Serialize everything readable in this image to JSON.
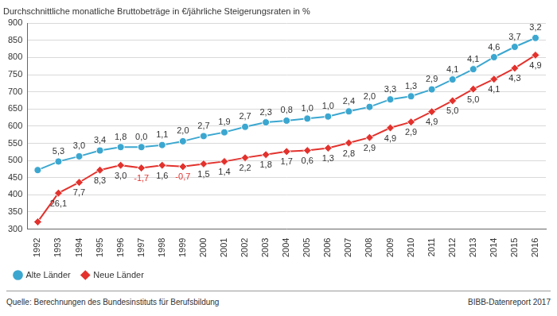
{
  "chart_data": {
    "type": "line",
    "title": "Durchschnittliche monatliche Bruttobeträge in €/jährliche Steigerungsraten in %",
    "source": "Quelle: Berechnungen des Bundesinstituts für Berufsbildung",
    "credit": "BIBB-Datenreport 2017",
    "categories": [
      "1992",
      "1993",
      "1994",
      "1995",
      "1996",
      "1997",
      "1998",
      "1999",
      "2000",
      "2001",
      "2002",
      "2003",
      "2004",
      "2005",
      "2006",
      "2007",
      "2008",
      "2009",
      "2010",
      "2011",
      "2012",
      "2013",
      "2014",
      "2015",
      "2016"
    ],
    "series": [
      {
        "name": "Alte Länder",
        "color": "#3ba7d0",
        "marker": "circle",
        "values": [
          472,
          497,
          512,
          529,
          539,
          539,
          545,
          556,
          571,
          582,
          598,
          611,
          616,
          622,
          628,
          643,
          656,
          678,
          687,
          707,
          736,
          766,
          801,
          831,
          857
        ],
        "rates": [
          null,
          5.3,
          3.0,
          3.4,
          1.8,
          0.0,
          1.1,
          2.0,
          2.7,
          1.9,
          2.7,
          2.3,
          0.8,
          1.0,
          1.0,
          2.4,
          2.0,
          3.3,
          1.3,
          2.9,
          4.1,
          4.1,
          4.6,
          3.7,
          3.2
        ],
        "rate_labels": [
          null,
          "5,3",
          "3,0",
          "3,4",
          "1,8",
          "0,0",
          "1,1",
          "2,0",
          "2,7",
          "1,9",
          "2,7",
          "2,3",
          "0,8",
          "1,0",
          "1,0",
          "2,4",
          "2,0",
          "3,3",
          "1,3",
          "2,9",
          "4,1",
          "4,1",
          "4,6",
          "3,7",
          "3,2"
        ]
      },
      {
        "name": "Neue Länder",
        "color": "#e3322d",
        "marker": "diamond",
        "values": [
          321,
          405,
          436,
          472,
          486,
          478,
          486,
          482,
          490,
          497,
          508,
          517,
          526,
          529,
          536,
          551,
          567,
          595,
          612,
          642,
          674,
          708,
          737,
          769,
          807
        ],
        "rates": [
          null,
          26.1,
          7.7,
          8.3,
          3.0,
          -1.7,
          1.6,
          -0.7,
          1.5,
          1.4,
          2.2,
          1.8,
          1.7,
          0.6,
          1.3,
          2.8,
          2.9,
          4.9,
          2.9,
          4.9,
          5.0,
          5.0,
          4.1,
          4.3,
          4.9
        ],
        "rate_labels": [
          null,
          "26,1",
          "7,7",
          "8,3",
          "3,0",
          "-1,7",
          "1,6",
          "-0,7",
          "1,5",
          "1,4",
          "2,2",
          "1,8",
          "1,7",
          "0,6",
          "1,3",
          "2,8",
          "2,9",
          "4,9",
          "2,9",
          "4,9",
          "5,0",
          "5,0",
          "4,1",
          "4,3",
          "4,9"
        ]
      }
    ],
    "ylim": [
      300,
      900
    ],
    "yticks": [
      300,
      350,
      400,
      450,
      500,
      550,
      600,
      650,
      700,
      750,
      800,
      850,
      900
    ],
    "grid": true,
    "legend": "bottom-left",
    "data_labels": true
  }
}
